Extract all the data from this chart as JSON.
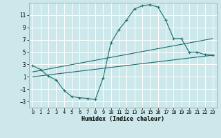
{
  "xlabel": "Humidex (Indice chaleur)",
  "bg_color": "#cce8ea",
  "grid_color": "#ffffff",
  "line_color": "#1a6b6b",
  "curve1_x": [
    0,
    1,
    2,
    3,
    4,
    5,
    6,
    7,
    8,
    9,
    10,
    11,
    12,
    13,
    14,
    15,
    16,
    17,
    18,
    19,
    20,
    21,
    22,
    23
  ],
  "curve1_y": [
    2.8,
    2.2,
    1.1,
    0.5,
    -1.2,
    -2.2,
    -2.4,
    -2.5,
    -2.7,
    0.8,
    6.5,
    8.6,
    10.2,
    12.0,
    12.5,
    12.7,
    12.3,
    10.2,
    7.2,
    7.2,
    5.0,
    5.0,
    4.6,
    4.5
  ],
  "curve2_x": [
    0,
    23
  ],
  "curve2_y": [
    1.8,
    7.2
  ],
  "curve3_x": [
    0,
    23
  ],
  "curve3_y": [
    1.0,
    4.5
  ],
  "xlim": [
    -0.5,
    23.5
  ],
  "ylim": [
    -4,
    13
  ],
  "yticks": [
    -3,
    -1,
    1,
    3,
    5,
    7,
    9,
    11
  ],
  "xticks": [
    0,
    1,
    2,
    3,
    4,
    5,
    6,
    7,
    8,
    9,
    10,
    11,
    12,
    13,
    14,
    15,
    16,
    17,
    18,
    19,
    20,
    21,
    22,
    23
  ]
}
